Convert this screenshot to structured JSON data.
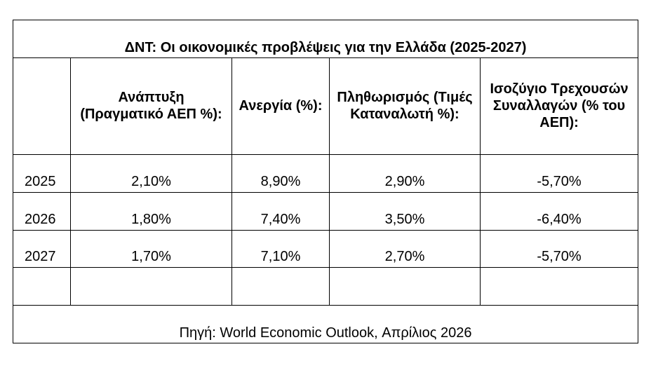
{
  "chart_data": {
    "type": "table",
    "title": "ΔΝΤ: Οι οικονομικές προβλέψεις για την Ελλάδα (2025-2027)",
    "columns": [
      "",
      "Ανάπτυξη (Πραγματικό ΑΕΠ %):",
      "Ανεργία (%):",
      "Πληθωρισμός (Τιμές Καταναλωτή %):",
      "Ισοζύγιο Τρεχουσών Συναλλαγών (% του ΑΕΠ):"
    ],
    "rows": [
      {
        "year": "2025",
        "cells": [
          "2,10%",
          "8,90%",
          "2,90%",
          "-5,70%"
        ]
      },
      {
        "year": "2026",
        "cells": [
          "1,80%",
          "7,40%",
          "3,50%",
          "-6,40%"
        ]
      },
      {
        "year": "2027",
        "cells": [
          "1,70%",
          "7,10%",
          "2,70%",
          "-5,70%"
        ]
      }
    ],
    "values": {
      "growth": [
        2.1,
        1.8,
        1.7
      ],
      "unemployment": [
        8.9,
        7.4,
        7.1
      ],
      "inflation": [
        2.9,
        3.5,
        2.7
      ],
      "current_account": [
        -5.7,
        -6.4,
        -5.7
      ]
    },
    "source": "Πηγή: World Economic Outlook, Απρίλιος 2026"
  }
}
